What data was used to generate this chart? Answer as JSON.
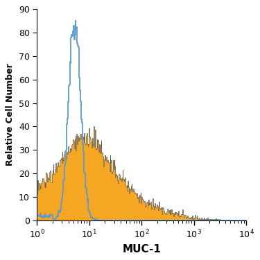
{
  "title": "",
  "xlabel": "MUC-1",
  "ylabel": "Relative Cell Number",
  "xlim": [
    1.0,
    10000.0
  ],
  "ylim": [
    0,
    90
  ],
  "yticks": [
    0,
    10,
    20,
    30,
    40,
    50,
    60,
    70,
    80,
    90
  ],
  "blue_color": "#5b9bd5",
  "orange_color": "#f5a623",
  "orange_edge_color": "#2a2a2a",
  "background_color": "#ffffff",
  "blue_peak_log10": 0.72,
  "blue_peak_val": 85,
  "blue_log_std": 0.115,
  "orange_peak_log10": 0.88,
  "orange_peak_val": 40,
  "orange_log_std": 0.55,
  "n_bins": 350,
  "log_xmin": 0.0,
  "log_xmax": 4.0
}
